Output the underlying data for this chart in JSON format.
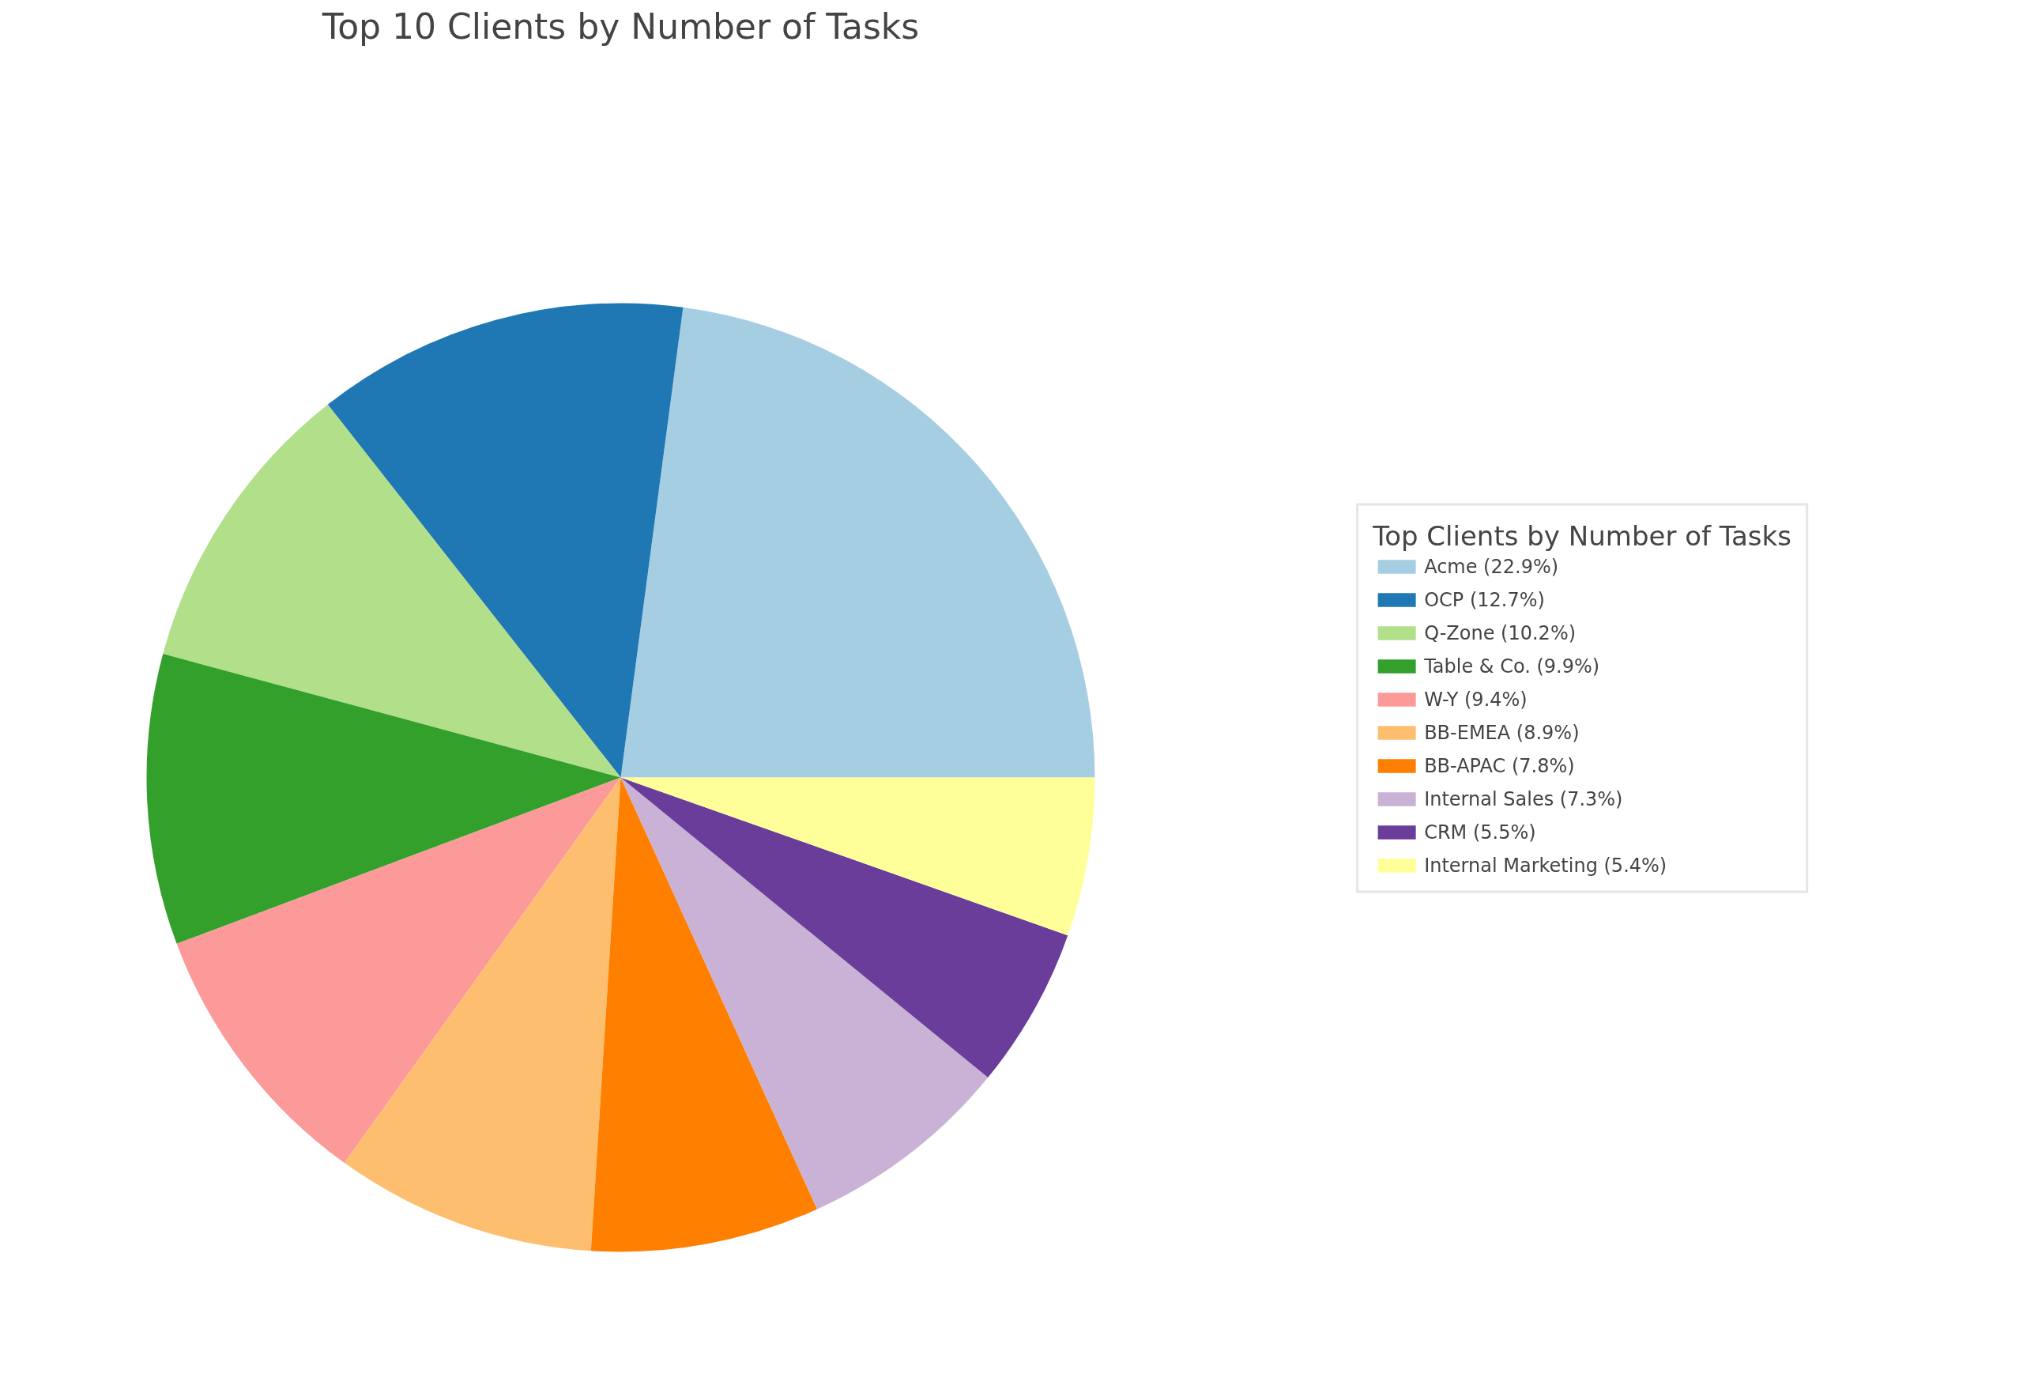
{
  "chart_data": {
    "type": "pie",
    "title": "Top 10 Clients by Number of Tasks",
    "legend_title": "Top Clients by Number of Tasks",
    "categories": [
      "Acme (22.9%)",
      "OCP (12.7%)",
      "Q-Zone (10.2%)",
      "Table & Co. (9.9%)",
      "W-Y (9.4%)",
      "BB-EMEA (8.9%)",
      "BB-APAC (7.8%)",
      "Internal Sales (7.3%)",
      "CRM (5.5%)",
      "Internal Marketing (5.4%)"
    ],
    "values": [
      22.9,
      12.7,
      10.2,
      9.9,
      9.4,
      8.9,
      7.8,
      7.3,
      5.5,
      5.4
    ],
    "colors": [
      "#a6cee3",
      "#1f78b4",
      "#b2df8a",
      "#33a02c",
      "#fb9a99",
      "#fdbf6f",
      "#ff7f00",
      "#cab2d6",
      "#6a3d9a",
      "#ffff99"
    ],
    "legend": "right"
  }
}
